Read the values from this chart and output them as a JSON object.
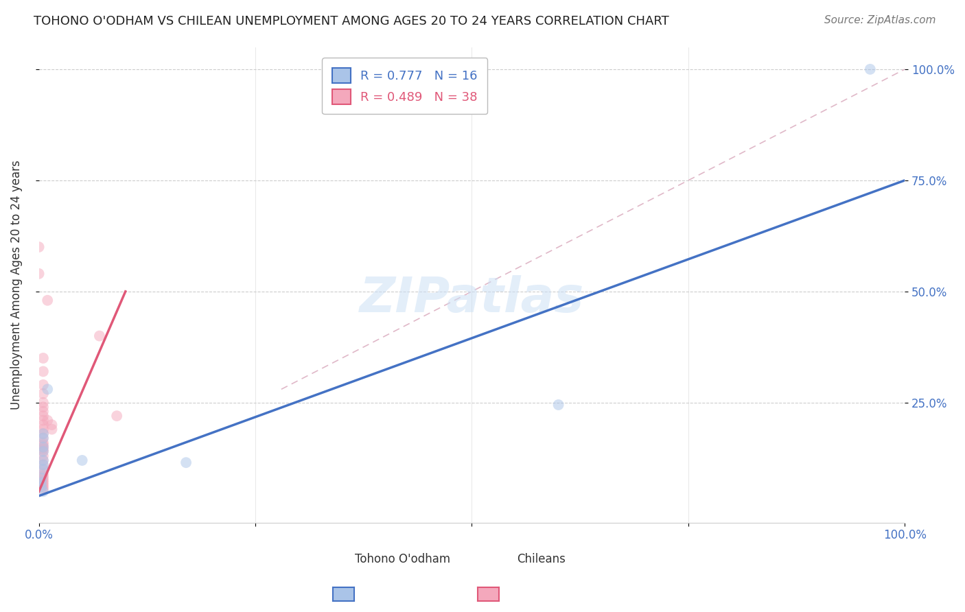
{
  "title": "TOHONO O'ODHAM VS CHILEAN UNEMPLOYMENT AMONG AGES 20 TO 24 YEARS CORRELATION CHART",
  "source": "Source: ZipAtlas.com",
  "ylabel": "Unemployment Among Ages 20 to 24 years",
  "xlim": [
    0,
    1.0
  ],
  "ylim": [
    -0.02,
    1.05
  ],
  "grid_color": "#cccccc",
  "background_color": "#ffffff",
  "tohono_color": "#aac4e8",
  "chilean_color": "#f4a8bc",
  "tohono_line_color": "#4472c4",
  "chilean_line_color": "#e05878",
  "diag_color": "#e0b8c8",
  "tohono_R": 0.777,
  "tohono_N": 16,
  "chilean_R": 0.489,
  "chilean_N": 38,
  "legend_label_1": "Tohono O'odham",
  "legend_label_2": "Chileans",
  "tohono_line_x0": 0.0,
  "tohono_line_y0": 0.04,
  "tohono_line_x1": 1.0,
  "tohono_line_y1": 0.75,
  "chilean_line_x0": 0.0,
  "chilean_line_y0": 0.05,
  "chilean_line_x1": 0.1,
  "chilean_line_y1": 0.5,
  "tohono_points": [
    [
      0.003,
      0.08
    ],
    [
      0.003,
      0.07
    ],
    [
      0.003,
      0.06
    ],
    [
      0.005,
      0.18
    ],
    [
      0.005,
      0.17
    ],
    [
      0.005,
      0.15
    ],
    [
      0.005,
      0.14
    ],
    [
      0.005,
      0.12
    ],
    [
      0.005,
      0.11
    ],
    [
      0.005,
      0.1
    ],
    [
      0.01,
      0.28
    ],
    [
      0.05,
      0.12
    ],
    [
      0.17,
      0.115
    ],
    [
      0.6,
      0.245
    ],
    [
      0.96,
      1.0
    ],
    [
      0.005,
      0.05
    ]
  ],
  "chilean_points": [
    [
      0.0,
      0.6
    ],
    [
      0.0,
      0.54
    ],
    [
      0.005,
      0.35
    ],
    [
      0.005,
      0.32
    ],
    [
      0.005,
      0.29
    ],
    [
      0.005,
      0.27
    ],
    [
      0.005,
      0.25
    ],
    [
      0.005,
      0.24
    ],
    [
      0.005,
      0.23
    ],
    [
      0.005,
      0.22
    ],
    [
      0.005,
      0.21
    ],
    [
      0.005,
      0.2
    ],
    [
      0.005,
      0.19
    ],
    [
      0.005,
      0.18
    ],
    [
      0.005,
      0.17
    ],
    [
      0.005,
      0.16
    ],
    [
      0.005,
      0.155
    ],
    [
      0.005,
      0.15
    ],
    [
      0.005,
      0.145
    ],
    [
      0.005,
      0.14
    ],
    [
      0.005,
      0.13
    ],
    [
      0.005,
      0.12
    ],
    [
      0.005,
      0.11
    ],
    [
      0.005,
      0.1
    ],
    [
      0.005,
      0.09
    ],
    [
      0.005,
      0.085
    ],
    [
      0.005,
      0.08
    ],
    [
      0.005,
      0.075
    ],
    [
      0.005,
      0.07
    ],
    [
      0.005,
      0.065
    ],
    [
      0.01,
      0.48
    ],
    [
      0.01,
      0.21
    ],
    [
      0.015,
      0.2
    ],
    [
      0.015,
      0.19
    ],
    [
      0.07,
      0.4
    ],
    [
      0.09,
      0.22
    ],
    [
      0.005,
      0.06
    ],
    [
      0.005,
      0.055
    ]
  ],
  "title_fontsize": 13,
  "source_fontsize": 11,
  "axis_label_fontsize": 12,
  "tick_fontsize": 12,
  "legend_fontsize": 13,
  "marker_size": 130,
  "marker_alpha": 0.5,
  "line_width": 2.5
}
